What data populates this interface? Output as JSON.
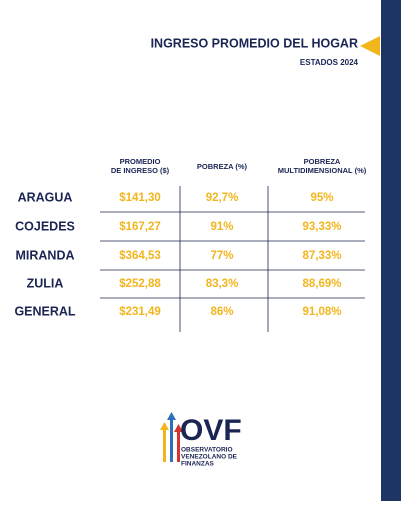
{
  "header": {
    "title": "INGRESO PROMEDIO DEL HOGAR",
    "subtitle": "ESTADOS 2024"
  },
  "table": {
    "columns": [
      [
        "PROMEDIO",
        "DE INGRESO ($)"
      ],
      [
        "POBREZA (%)"
      ],
      [
        "POBREZA",
        "MULTIDIMENSIONAL (%)"
      ]
    ],
    "rows": [
      [
        "ARAGUA",
        "$141,30",
        "92,7%",
        "95%"
      ],
      [
        "COJEDES",
        "$167,27",
        "91%",
        "93,33%"
      ],
      [
        "MIRANDA",
        "$364,53",
        "77%",
        "87,33%"
      ],
      [
        "ZULIA",
        "$252,88",
        "83,3%",
        "88,69%"
      ],
      [
        "GENERAL",
        "$231,49",
        "86%",
        "91,08%"
      ]
    ]
  },
  "logo": {
    "acronym": "OVF",
    "lines": [
      "OBSERVATORIO",
      "VENEZOLANO DE",
      "FINANZAS"
    ]
  }
}
